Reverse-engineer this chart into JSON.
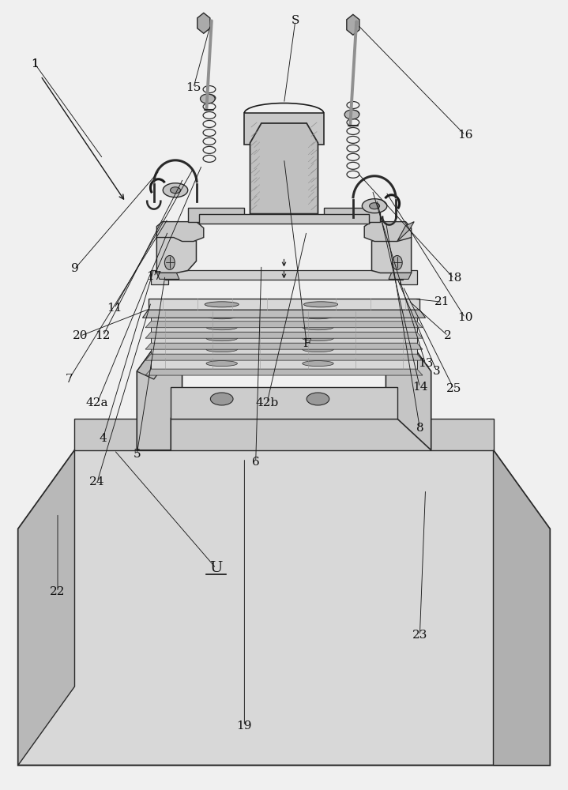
{
  "background_color": "#f0f0f0",
  "fig_width": 7.19,
  "fig_height": 10.0,
  "annotation_fontsize": 11,
  "line_color": "#1a1a1a",
  "drawing_color": "#2a2a2a",
  "underline_labels": [
    "U"
  ],
  "labels_data": {
    "1": [
      0.06,
      0.92,
      0.18,
      0.8
    ],
    "S": [
      0.52,
      0.975,
      0.5,
      0.87
    ],
    "15": [
      0.34,
      0.89,
      0.37,
      0.97
    ],
    "16": [
      0.82,
      0.83,
      0.63,
      0.97
    ],
    "9": [
      0.13,
      0.66,
      0.28,
      0.785
    ],
    "17": [
      0.27,
      0.65,
      0.355,
      0.792
    ],
    "11": [
      0.2,
      0.61,
      0.34,
      0.788
    ],
    "12": [
      0.18,
      0.575,
      0.322,
      0.775
    ],
    "F": [
      0.54,
      0.565,
      0.5,
      0.8
    ],
    "7": [
      0.12,
      0.52,
      0.295,
      0.724
    ],
    "42a": [
      0.17,
      0.49,
      0.295,
      0.708
    ],
    "42b": [
      0.47,
      0.49,
      0.54,
      0.708
    ],
    "4": [
      0.18,
      0.445,
      0.27,
      0.66
    ],
    "5": [
      0.24,
      0.425,
      0.29,
      0.652
    ],
    "6": [
      0.45,
      0.415,
      0.46,
      0.665
    ],
    "8": [
      0.74,
      0.458,
      0.68,
      0.72
    ],
    "10": [
      0.82,
      0.598,
      0.68,
      0.758
    ],
    "13": [
      0.75,
      0.54,
      0.656,
      0.76
    ],
    "14": [
      0.74,
      0.51,
      0.664,
      0.748
    ],
    "18": [
      0.8,
      0.648,
      0.63,
      0.782
    ],
    "24": [
      0.17,
      0.39,
      0.265,
      0.618
    ],
    "20": [
      0.14,
      0.575,
      0.265,
      0.61
    ],
    "3": [
      0.77,
      0.53,
      0.7,
      0.648
    ],
    "25": [
      0.8,
      0.508,
      0.71,
      0.638
    ],
    "2": [
      0.79,
      0.575,
      0.72,
      0.62
    ],
    "21": [
      0.78,
      0.618,
      0.73,
      0.622
    ],
    "22": [
      0.1,
      0.25,
      0.1,
      0.35
    ],
    "19": [
      0.43,
      0.08,
      0.43,
      0.42
    ],
    "23": [
      0.74,
      0.195,
      0.75,
      0.38
    ]
  }
}
